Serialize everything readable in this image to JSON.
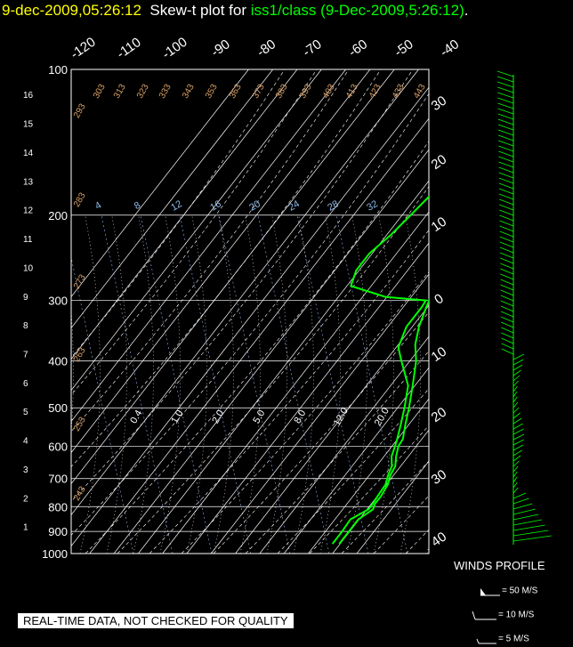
{
  "header": {
    "timestamp": "9-dec-2009,05:26:12",
    "title_prefix": "Skew-t plot for",
    "station": "iss1/class (9-Dec-2009,5:26:12)",
    "title_suffix": "."
  },
  "footer_note": "REAL-TIME DATA, NOT CHECKED FOR QUALITY",
  "winds": {
    "title": "WINDS PROFILE",
    "legend": [
      {
        "label": "= 50 M/S",
        "barb": "pennant"
      },
      {
        "label": "= 10 M/S",
        "barb": "full"
      },
      {
        "label": "= 5 M/S",
        "barb": "half"
      }
    ]
  },
  "colors": {
    "background": "#000000",
    "profile": "#00ff00",
    "grid": "#ffffff",
    "dry_adiabat_label": "#d9a066",
    "mixing_ratio_label": "#8fb8e8",
    "header_timestamp": "#ffff00",
    "header_station": "#00ff00"
  },
  "chart_data": {
    "type": "line",
    "subtype": "skew-t",
    "pressure_levels": [
      100,
      200,
      300,
      400,
      500,
      600,
      700,
      800,
      900,
      1000
    ],
    "height_km_ticks": [
      1,
      2,
      3,
      4,
      5,
      6,
      7,
      8,
      9,
      10,
      11,
      12,
      13,
      14,
      15,
      16
    ],
    "temperature_ticks_top": [
      -120,
      -110,
      -100,
      -90,
      -80,
      -70,
      -60,
      -50,
      -40
    ],
    "temperature_ticks_right": [
      30,
      20,
      10,
      0,
      10,
      20,
      30,
      40
    ],
    "dry_adiabat_labels": [
      "293",
      "303",
      "313",
      "323",
      "333",
      "343",
      "353",
      "363",
      "373",
      "383",
      "393",
      "403",
      "413",
      "423",
      "433",
      "443",
      "283",
      "273",
      "263",
      "253",
      "243"
    ],
    "mixing_ratio_labels_upper": [
      "4",
      "8",
      "12",
      "16",
      "20",
      "24",
      "28",
      "32"
    ],
    "mixing_ratio_labels_lower": [
      "0.4",
      "1.0",
      "2.0",
      "5.0",
      "8.0",
      "12.0",
      "20.0"
    ],
    "series": [
      {
        "name": "temperature",
        "p": [
          955,
          930,
          900,
          850,
          810,
          790,
          760,
          720,
          690,
          660,
          630,
          600,
          580,
          540,
          500,
          450,
          400,
          370,
          340,
          310,
          300,
          270,
          240,
          200,
          180,
          150,
          130,
          100
        ],
        "t": [
          5.5,
          5.5,
          5.5,
          5.5,
          8.5,
          7.5,
          7.5,
          6.5,
          4.5,
          3.5,
          0.5,
          -2.0,
          -2.5,
          -6.5,
          -10.5,
          -16.5,
          -23.5,
          -29.5,
          -34.0,
          -37.5,
          -38.5,
          -44.5,
          -52.0,
          -59.0,
          -62.0,
          -64.0,
          -66.0,
          -66.5
        ]
      },
      {
        "name": "dewpoint",
        "p": [
          955,
          930,
          900,
          850,
          810,
          790,
          760,
          720,
          690,
          660,
          630,
          600,
          580,
          540,
          500,
          450,
          400,
          375,
          340,
          310,
          300,
          295,
          280,
          260,
          240,
          220,
          200,
          180,
          160,
          140,
          120,
          100
        ],
        "t": [
          2.5,
          2.5,
          2.5,
          2.0,
          6.5,
          6.5,
          6.0,
          5.5,
          3.5,
          2.0,
          -1.5,
          -3.5,
          -5.0,
          -8.5,
          -12.5,
          -18.5,
          -30.0,
          -36.0,
          -39.5,
          -39.5,
          -40.0,
          -59.0,
          -78.0,
          -81.0,
          -81.0,
          -78.0,
          -76.0,
          -74.0,
          -74.0,
          -74.0,
          -76.0,
          -82.0
        ]
      }
    ]
  }
}
